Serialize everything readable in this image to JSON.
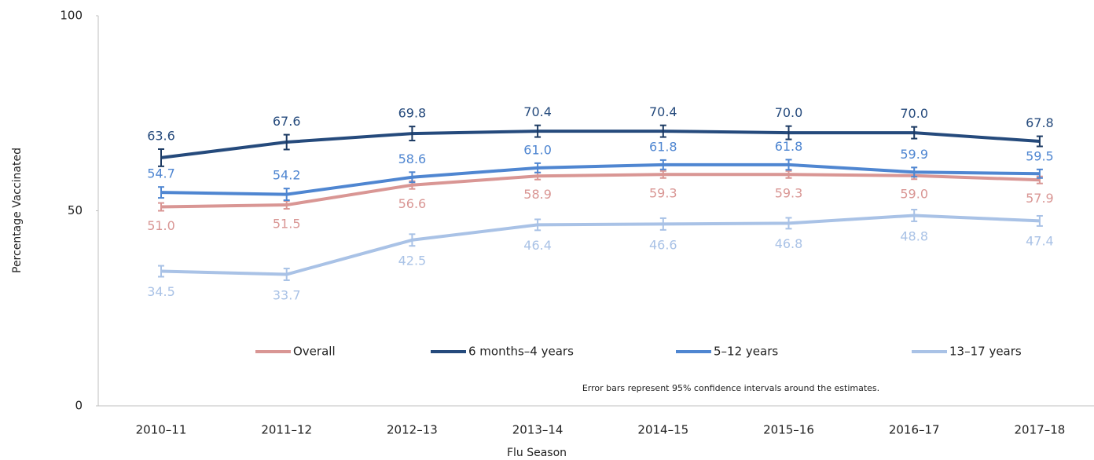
{
  "chart_data": {
    "type": "line",
    "x_label": "Flu Season",
    "y_label": "Percentage Vaccinated",
    "note": "Error bars represent 95% confidence intervals around the estimates.",
    "categories": [
      "2010–11",
      "2011–12",
      "2012–13",
      "2013–14",
      "2014–15",
      "2015–16",
      "2016–17",
      "2017–18"
    ],
    "ylim": [
      0,
      100
    ],
    "yticks": [
      0,
      50,
      100
    ],
    "legend": "lower center",
    "series": [
      {
        "name": "Overall",
        "color": "#d99694",
        "values": [
          51.0,
          51.5,
          56.6,
          58.9,
          59.3,
          59.3,
          59.0,
          57.9
        ],
        "value_labels": [
          "51.0",
          "51.5",
          "56.6",
          "58.9",
          "59.3",
          "59.3",
          "59.0",
          "57.9"
        ],
        "errors": [
          1.0,
          1.0,
          1.0,
          0.9,
          0.9,
          0.9,
          0.9,
          0.9
        ]
      },
      {
        "name": "6 months–4 years",
        "color": "#254a7c",
        "values": [
          63.6,
          67.6,
          69.8,
          70.4,
          70.4,
          70.0,
          70.0,
          67.8
        ],
        "value_labels": [
          "63.6",
          "67.6",
          "69.8",
          "70.4",
          "70.4",
          "70.0",
          "70.0",
          "67.8"
        ],
        "errors": [
          2.2,
          1.9,
          1.8,
          1.5,
          1.5,
          1.7,
          1.5,
          1.3
        ]
      },
      {
        "name": "5–12 years",
        "color": "#4f86d1",
        "values": [
          54.7,
          54.2,
          58.6,
          61.0,
          61.8,
          61.8,
          59.9,
          59.5
        ],
        "value_labels": [
          "54.7",
          "54.2",
          "58.6",
          "61.0",
          "61.8",
          "61.8",
          "59.9",
          "59.5"
        ],
        "errors": [
          1.4,
          1.5,
          1.3,
          1.2,
          1.2,
          1.3,
          1.2,
          1.1
        ]
      },
      {
        "name": "13–17 years",
        "color": "#a9c2e6",
        "values": [
          34.5,
          33.7,
          42.5,
          46.4,
          46.6,
          46.8,
          48.8,
          47.4
        ],
        "value_labels": [
          "34.5",
          "33.7",
          "42.5",
          "46.4",
          "46.6",
          "46.8",
          "48.8",
          "47.4"
        ],
        "errors": [
          1.4,
          1.5,
          1.5,
          1.4,
          1.5,
          1.4,
          1.5,
          1.3
        ]
      }
    ]
  }
}
